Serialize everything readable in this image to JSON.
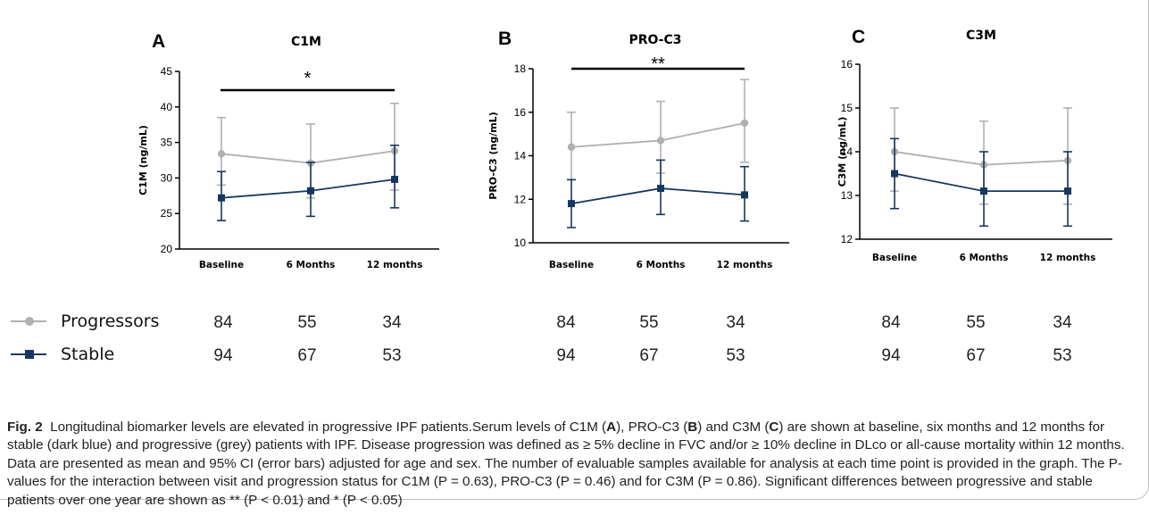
{
  "colors": {
    "progressors": "#b0b0b0",
    "stable": "#17385e"
  },
  "legend": [
    {
      "name": "Progressors",
      "icon": "circle-marker-icon"
    },
    {
      "name": "Stable",
      "icon": "square-marker-icon"
    }
  ],
  "chart_data": [
    {
      "type": "line",
      "panel": "A",
      "title": "C1M",
      "xlabel": "",
      "ylabel": "C1M (ng/mL)",
      "categories": [
        "Baseline",
        "6 Months",
        "12 months"
      ],
      "ylim": [
        20,
        45
      ],
      "yticks": [
        "20",
        "25",
        "30",
        "35",
        "40",
        "45"
      ],
      "significance": {
        "label": "*",
        "from": "Baseline",
        "to": "12 months"
      },
      "series": [
        {
          "name": "Progressors",
          "values": [
            33.4,
            32.1,
            33.8
          ],
          "ci_low": [
            29.0,
            27.2,
            28.3
          ],
          "ci_high": [
            38.5,
            37.6,
            40.5
          ],
          "n": [
            "84",
            "55",
            "34"
          ]
        },
        {
          "name": "Stable",
          "values": [
            27.2,
            28.2,
            29.8
          ],
          "ci_low": [
            24.0,
            24.6,
            25.8
          ],
          "ci_high": [
            30.9,
            32.2,
            34.6
          ],
          "n": [
            "94",
            "67",
            "53"
          ]
        }
      ]
    },
    {
      "type": "line",
      "panel": "B",
      "title": "PRO-C3",
      "xlabel": "",
      "ylabel": "PRO-C3 (ng/mL)",
      "categories": [
        "Baseline",
        "6 Months",
        "12 months"
      ],
      "ylim": [
        10,
        18
      ],
      "yticks": [
        "10",
        "12",
        "14",
        "16",
        "18"
      ],
      "significance": {
        "label": "**",
        "from": "Baseline",
        "to": "12 months"
      },
      "series": [
        {
          "name": "Progressors",
          "values": [
            14.4,
            14.7,
            15.5
          ],
          "ci_low": [
            12.9,
            13.2,
            13.7
          ],
          "ci_high": [
            16.0,
            16.5,
            17.5
          ],
          "n": [
            "84",
            "55",
            "34"
          ]
        },
        {
          "name": "Stable",
          "values": [
            11.8,
            12.5,
            12.2
          ],
          "ci_low": [
            10.7,
            11.3,
            11.0
          ],
          "ci_high": [
            12.9,
            13.8,
            13.5
          ],
          "n": [
            "94",
            "67",
            "53"
          ]
        }
      ]
    },
    {
      "type": "line",
      "panel": "C",
      "title": "C3M",
      "xlabel": "",
      "ylabel": "C3M (ng/mL)",
      "categories": [
        "Baseline",
        "6 Months",
        "12 months"
      ],
      "ylim": [
        12,
        16
      ],
      "yticks": [
        "12",
        "13",
        "14",
        "15",
        "16"
      ],
      "significance": null,
      "series": [
        {
          "name": "Progressors",
          "values": [
            14.0,
            13.7,
            13.8
          ],
          "ci_low": [
            13.1,
            12.8,
            12.8
          ],
          "ci_high": [
            15.0,
            14.7,
            15.0
          ],
          "n": [
            "84",
            "55",
            "34"
          ]
        },
        {
          "name": "Stable",
          "values": [
            13.5,
            13.1,
            13.1
          ],
          "ci_low": [
            12.7,
            12.3,
            12.3
          ],
          "ci_high": [
            14.3,
            14.0,
            14.0
          ],
          "n": [
            "94",
            "67",
            "53"
          ]
        }
      ]
    }
  ],
  "caption": {
    "label": "Fig. 2",
    "heading": "Longitudinal biomarker levels are elevated in progressive IPF patients.",
    "t1": "Serum levels of C1M (",
    "a": "A",
    "t2": "), PRO-C3 (",
    "b": "B",
    "t3": ") and C3M (",
    "c": "C",
    "t4": ") are shown at baseline, six months and 12 months for stable (dark blue) and progressive (grey) patients with IPF. Disease progression was defined as ≥ 5% decline in FVC and/or ≥ 10% decline in DLco or all-cause mortality within 12 months. Data are presented as mean and 95% CI (error bars) adjusted for age and sex. The number of evaluable samples available for analysis at each time point is provided in the graph. The P-values for the interaction between visit and progression status for C1M (P = 0.63), PRO-C3 (P = 0.46) and for C3M (P = 0.86). Significant differences between progressive and stable patients over one year are shown as ** (P < 0.01) and * (P < 0.05)"
  }
}
